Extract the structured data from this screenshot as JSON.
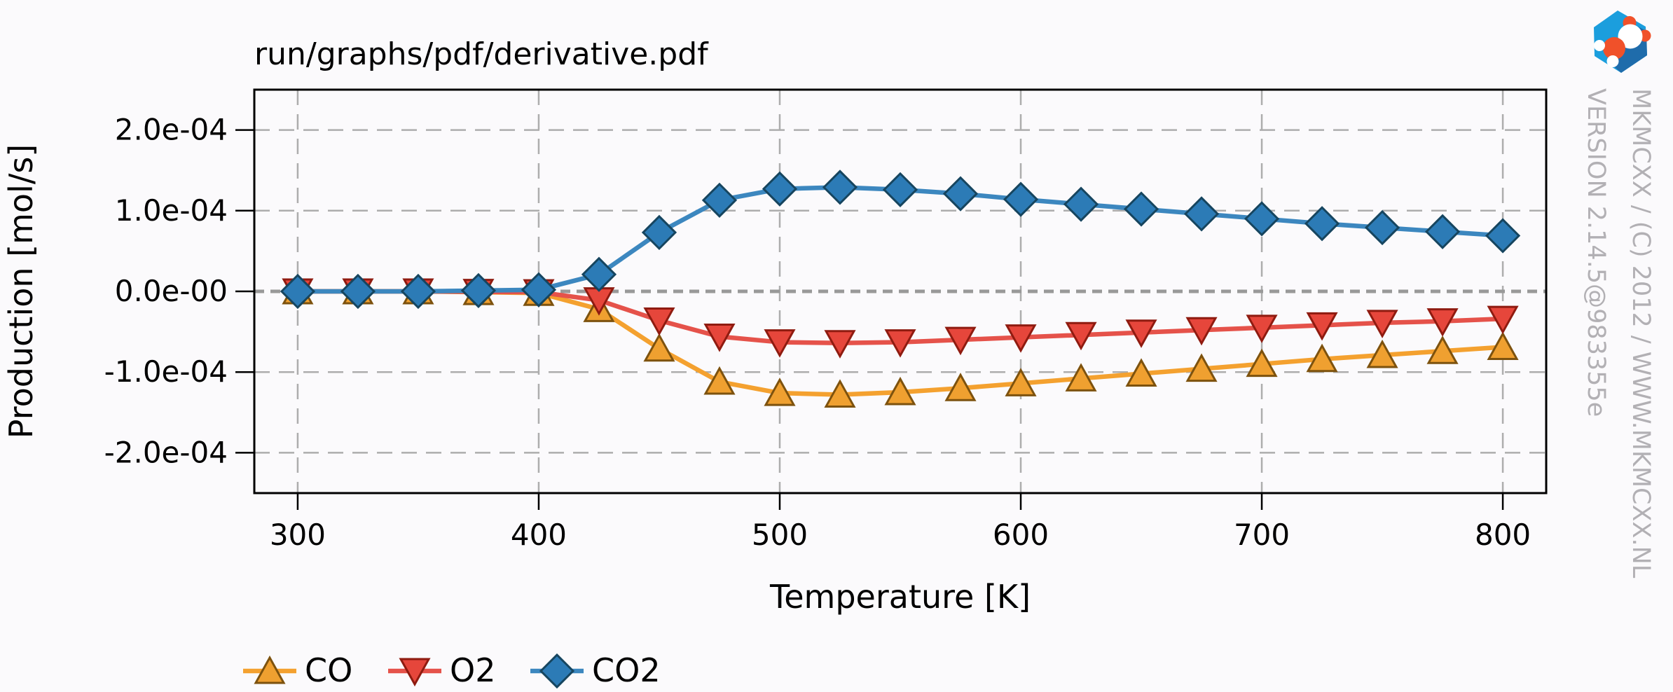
{
  "page": {
    "background": "#fbfafc"
  },
  "chart_data": {
    "type": "line",
    "title": "run/graphs/pdf/derivative.pdf",
    "xlabel": "Temperature [K]",
    "ylabel": "Production [mol/s]",
    "xlim": [
      282,
      818
    ],
    "ylim": [
      -0.00025,
      0.00025
    ],
    "grid": true,
    "grid_style": "dashed",
    "legend_position": "bottom-left",
    "x": [
      300,
      325,
      350,
      375,
      400,
      425,
      450,
      475,
      500,
      525,
      550,
      575,
      600,
      625,
      650,
      675,
      700,
      725,
      750,
      775,
      800
    ],
    "xticks": [
      {
        "v": 300,
        "label": "300"
      },
      {
        "v": 400,
        "label": "400"
      },
      {
        "v": 500,
        "label": "500"
      },
      {
        "v": 600,
        "label": "600"
      },
      {
        "v": 700,
        "label": "700"
      },
      {
        "v": 800,
        "label": "800"
      }
    ],
    "yticks": [
      {
        "v": 0.0002,
        "label": "2.0e-04"
      },
      {
        "v": 0.0001,
        "label": "1.0e-04"
      },
      {
        "v": 0,
        "label": "0.0e-00"
      },
      {
        "v": -0.0001,
        "label": "-1.0e-04"
      },
      {
        "v": -0.0002,
        "label": "-2.0e-04"
      }
    ],
    "series": [
      {
        "name": "CO",
        "marker": "triangle-up",
        "line_color": "#f4a12f",
        "marker_fill": "#efa030",
        "marker_edge": "#7d520e",
        "values": [
          0,
          0,
          0,
          -1e-06,
          -2e-06,
          -2.2e-05,
          -7.1e-05,
          -0.000112,
          -0.000126,
          -0.000128,
          -0.000125,
          -0.00012,
          -0.000114,
          -0.000108,
          -0.000102,
          -9.6e-05,
          -9e-05,
          -8.4e-05,
          -7.9e-05,
          -7.4e-05,
          -6.9e-05
        ]
      },
      {
        "name": "O2",
        "marker": "triangle-down",
        "line_color": "#e5524a",
        "marker_fill": "#e6463b",
        "marker_edge": "#8f1b10",
        "values": [
          0,
          0,
          0,
          -5e-07,
          -1e-06,
          -1.1e-05,
          -3.6e-05,
          -5.6e-05,
          -6.3e-05,
          -6.4e-05,
          -6.3e-05,
          -6e-05,
          -5.7e-05,
          -5.4e-05,
          -5.1e-05,
          -4.8e-05,
          -4.5e-05,
          -4.2e-05,
          -3.9e-05,
          -3.7e-05,
          -3.4e-05
        ]
      },
      {
        "name": "CO2",
        "marker": "diamond",
        "line_color": "#3c87bf",
        "marker_fill": "#2c7bb6",
        "marker_edge": "#16455f",
        "values": [
          0,
          0,
          0,
          1e-06,
          2e-06,
          2.1e-05,
          7.3e-05,
          0.000113,
          0.000127,
          0.000129,
          0.000126,
          0.000121,
          0.000114,
          0.000108,
          0.000102,
          9.6e-05,
          9e-05,
          8.4e-05,
          7.9e-05,
          7.4e-05,
          6.9e-05
        ]
      }
    ]
  },
  "watermark": {
    "line1": "MKMCXX / (C) 2012 / WWW.MKMCXX.NL",
    "line2": "VERSION 2.14.5@983355e",
    "color": "#b2b0b4"
  },
  "logo": {
    "hex_color": "#1b9edd",
    "shadow_color": "#1f6cab",
    "orange_color": "#f0512a",
    "white_color": "#ffffff"
  }
}
